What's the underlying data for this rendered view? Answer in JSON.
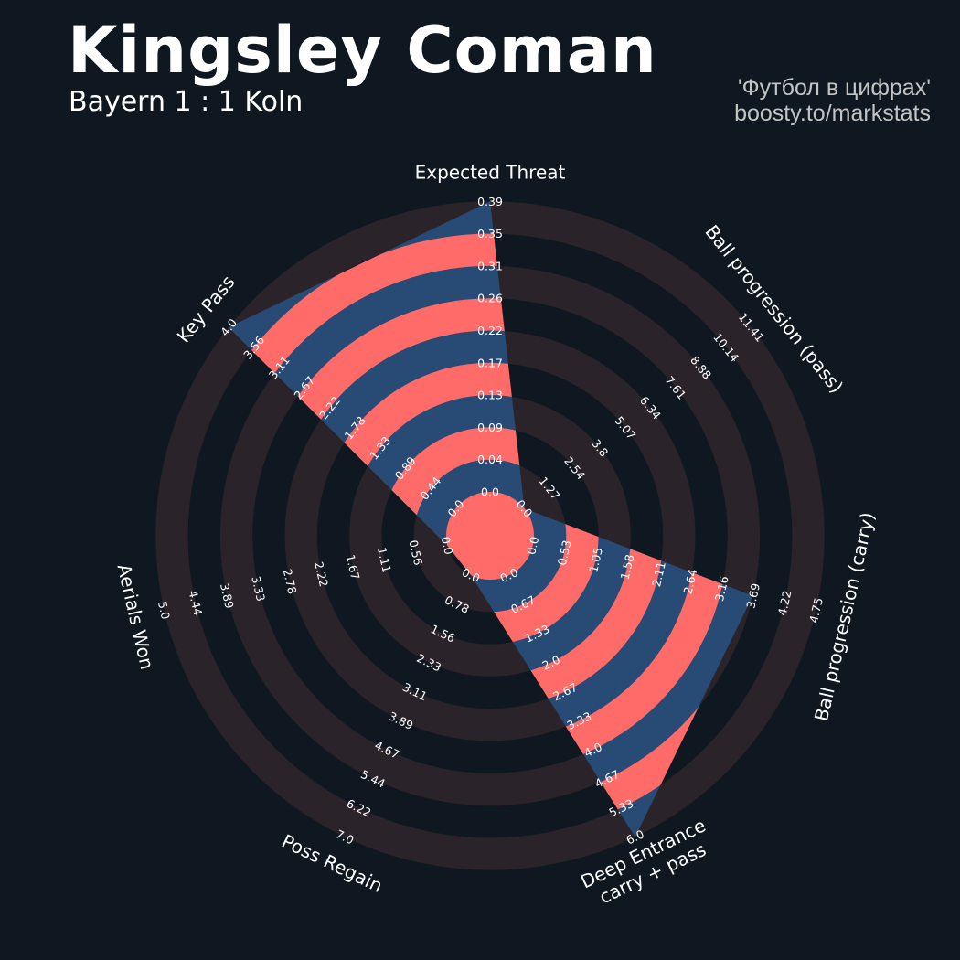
{
  "header": {
    "title": "Kingsley Coman",
    "subtitle": "Bayern 1 : 1 Koln",
    "credit_line1": "'Футбол в цифрах'",
    "credit_line2": "boosty.to/markstats"
  },
  "colors": {
    "background": "#0f1820",
    "ring_band": "#2a2329",
    "player_fill": "#284b76",
    "highlight_band": "#ff6b68",
    "text": "#ffffff"
  },
  "chart_data": {
    "type": "radar",
    "title": "Kingsley Coman",
    "subtitle": "Bayern 1 : 1 Koln",
    "ring_count": 9,
    "axes": [
      {
        "label": "Expected Threat",
        "max": 0.39,
        "value": 0.39,
        "ticks": [
          "0.0",
          "0.04",
          "0.09",
          "0.13",
          "0.17",
          "0.22",
          "0.26",
          "0.31",
          "0.35",
          "0.39"
        ]
      },
      {
        "label": "Ball progression (pass)",
        "max": 11.41,
        "value": 0,
        "ticks": [
          "0.0",
          "1.27",
          "2.54",
          "3.8",
          "5.07",
          "6.34",
          "7.61",
          "8.88",
          "10.14",
          "11.41"
        ]
      },
      {
        "label": "Ball progression (carry)",
        "max": 4.75,
        "value": 3.69,
        "ticks": [
          "0.0",
          "0.53",
          "1.05",
          "1.58",
          "2.11",
          "2.64",
          "3.16",
          "3.69",
          "4.22",
          "4.75"
        ]
      },
      {
        "label": "Deep Entrance\ncarry + pass",
        "max": 6.0,
        "value": 6.0,
        "ticks": [
          "0.0",
          "0.67",
          "1.33",
          "2.0",
          "2.67",
          "3.33",
          "4.0",
          "4.67",
          "5.33",
          "6.0"
        ]
      },
      {
        "label": "Poss Regain",
        "max": 7.0,
        "value": 0,
        "ticks": [
          "0.0",
          "0.78",
          "1.56",
          "2.33",
          "3.11",
          "3.89",
          "4.67",
          "5.44",
          "6.22",
          "7.0"
        ]
      },
      {
        "label": "Aerials Won",
        "max": 5.0,
        "value": 0,
        "ticks": [
          "0.0",
          "0.56",
          "1.11",
          "1.67",
          "2.22",
          "2.78",
          "3.33",
          "3.89",
          "4.44",
          "5.0"
        ]
      },
      {
        "label": "Key Pass",
        "max": 4.0,
        "value": 4.0,
        "ticks": [
          "0.0",
          "0.44",
          "0.89",
          "1.33",
          "1.78",
          "2.22",
          "2.67",
          "3.11",
          "3.56",
          "4.0"
        ]
      }
    ]
  }
}
